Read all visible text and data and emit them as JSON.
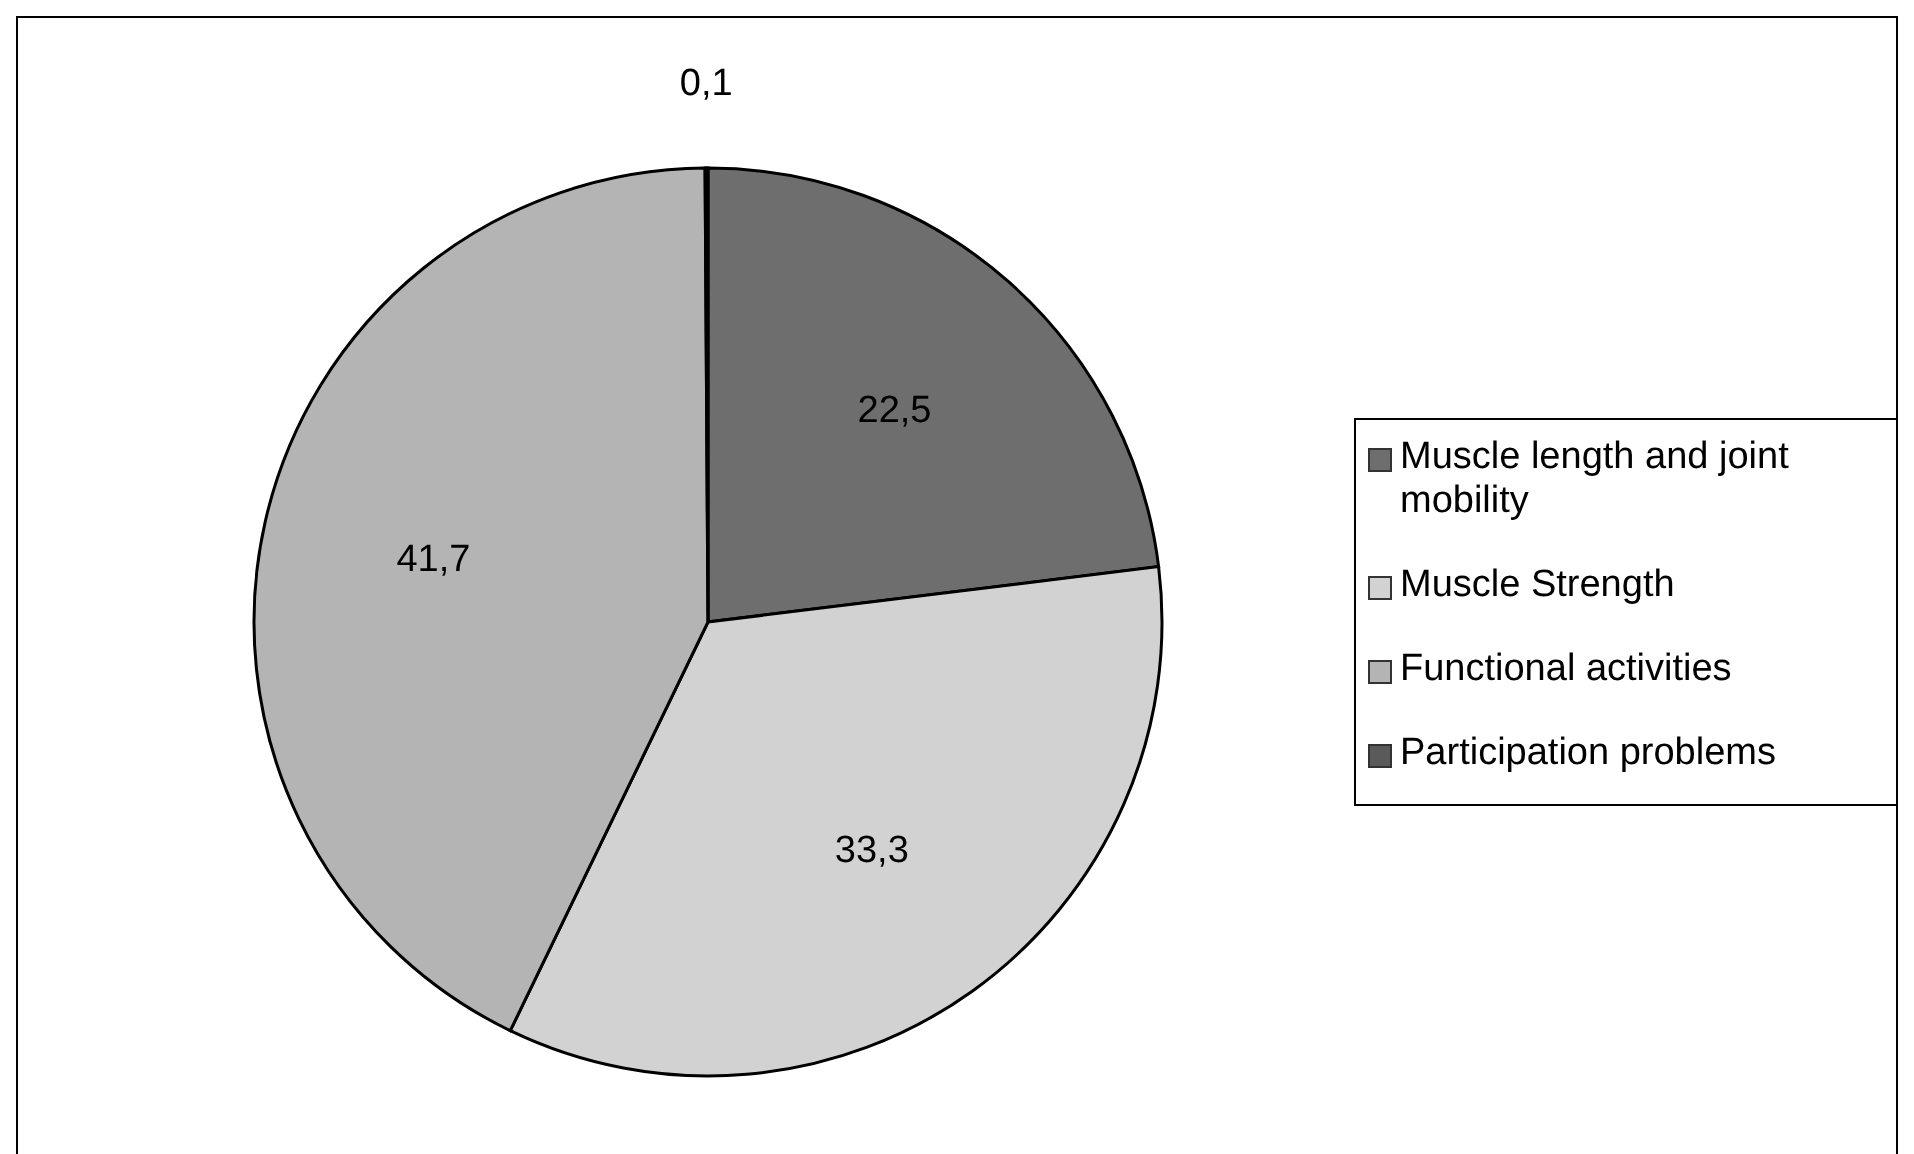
{
  "chart_data": {
    "type": "pie",
    "categories": [
      "Muscle length and joint mobility",
      "Muscle Strength",
      "Functional activities",
      "Participation problems"
    ],
    "values": [
      22.5,
      33.3,
      41.7,
      0.1
    ],
    "value_labels": [
      "22,5",
      "33,3",
      "41,7",
      "0,1"
    ],
    "colors": [
      "#6e6e6e",
      "#d2d2d2",
      "#b4b4b4",
      "#5a5a5a"
    ],
    "legend": "right"
  }
}
